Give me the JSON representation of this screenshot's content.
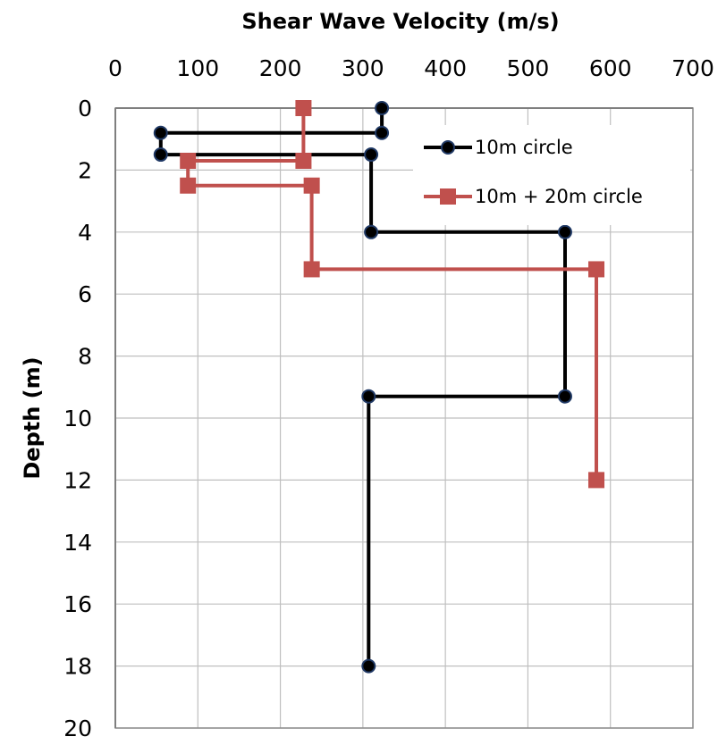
{
  "chart_data": {
    "type": "line",
    "xlabel": "Shear Wave Velocity (m/s)",
    "ylabel": "Depth (m)",
    "xlim": [
      0,
      700
    ],
    "ylim": [
      0,
      20
    ],
    "y_inverted": true,
    "x_axis_position": "top",
    "x_ticks": [
      0,
      100,
      200,
      300,
      400,
      500,
      600,
      700
    ],
    "y_ticks": [
      0,
      2,
      4,
      6,
      8,
      10,
      12,
      14,
      16,
      18,
      20
    ],
    "grid": true,
    "legend_position": "top-right",
    "series": [
      {
        "name": "10m circle",
        "color": "#000000",
        "marker": "circle",
        "points": [
          [
            323,
            0
          ],
          [
            323,
            0.8
          ],
          [
            55,
            0.8
          ],
          [
            55,
            1.5
          ],
          [
            310,
            1.5
          ],
          [
            310,
            4.0
          ],
          [
            545,
            4.0
          ],
          [
            545,
            9.3
          ],
          [
            307,
            9.3
          ],
          [
            307,
            18
          ]
        ]
      },
      {
        "name": "10m + 20m circle",
        "color": "#c0504d",
        "marker": "square",
        "points": [
          [
            228,
            0
          ],
          [
            228,
            1.7
          ],
          [
            88,
            1.7
          ],
          [
            88,
            2.5
          ],
          [
            238,
            2.5
          ],
          [
            238,
            5.2
          ],
          [
            583,
            5.2
          ],
          [
            583,
            12
          ]
        ]
      }
    ]
  }
}
